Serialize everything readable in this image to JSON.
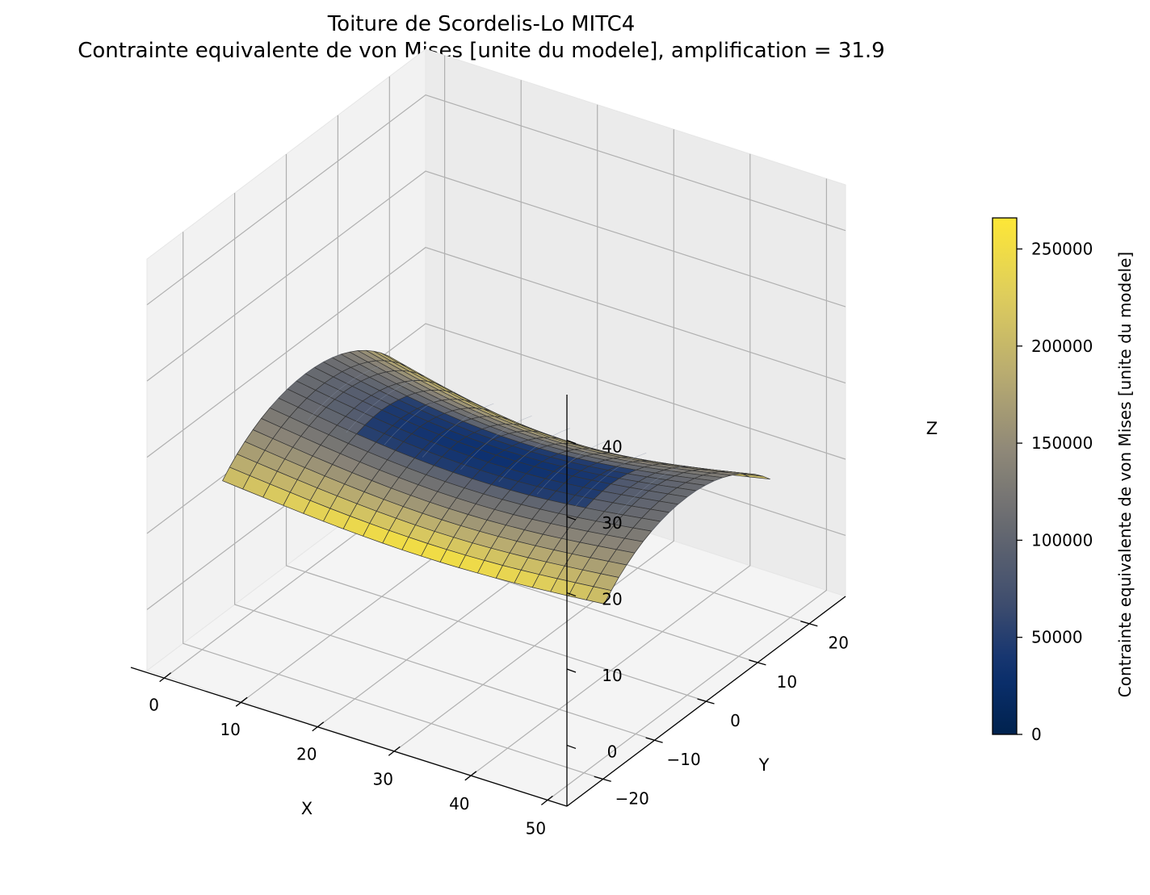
{
  "chart_data": {
    "type": "surface3d",
    "title": "Toiture de Scordelis-Lo MITC4",
    "subtitle": "Contrainte equivalente de von Mises [unite du modele], amplification = 31.9",
    "xlabel": "X",
    "ylabel": "Y",
    "zlabel": "Z",
    "x_ticks": [
      "0",
      "10",
      "20",
      "30",
      "40",
      "50"
    ],
    "y_ticks": [
      "−20",
      "−10",
      "0",
      "10",
      "20"
    ],
    "z_ticks": [
      "0",
      "10",
      "20",
      "30",
      "40"
    ],
    "xlim": [
      -2.5,
      52.5
    ],
    "ylim": [
      -27,
      27
    ],
    "zlim": [
      -8,
      46
    ],
    "geometry": {
      "length": 50,
      "radius": 25,
      "half_angle_deg": 40,
      "grid": [
        20,
        20
      ],
      "amplification": 31.9
    },
    "colorbar": {
      "label": "Contrainte equivalente de von Mises [unite du modele]",
      "range": [
        0,
        266000
      ],
      "ticks": [
        "0",
        "50000",
        "100000",
        "150000",
        "200000",
        "250000"
      ],
      "tick_values": [
        0,
        50000,
        100000,
        150000,
        200000,
        250000
      ],
      "colormap": "cividis"
    },
    "grid": true
  }
}
